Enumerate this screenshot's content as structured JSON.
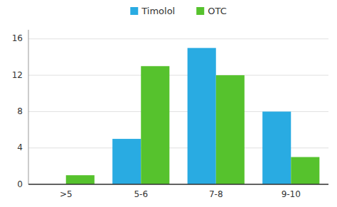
{
  "chart_data": {
    "type": "bar",
    "categories": [
      ">5",
      "5-6",
      "7-8",
      "9-10"
    ],
    "series": [
      {
        "name": "Timolol",
        "color": "#29ABE2",
        "values": [
          0,
          5,
          15,
          8
        ]
      },
      {
        "name": "OTC",
        "color": "#56C22D",
        "values": [
          1,
          13,
          12,
          3
        ]
      }
    ],
    "ylim": [
      0,
      17
    ],
    "yticks": [
      0,
      4,
      8,
      12,
      16
    ],
    "grid": true,
    "legend": "top"
  }
}
